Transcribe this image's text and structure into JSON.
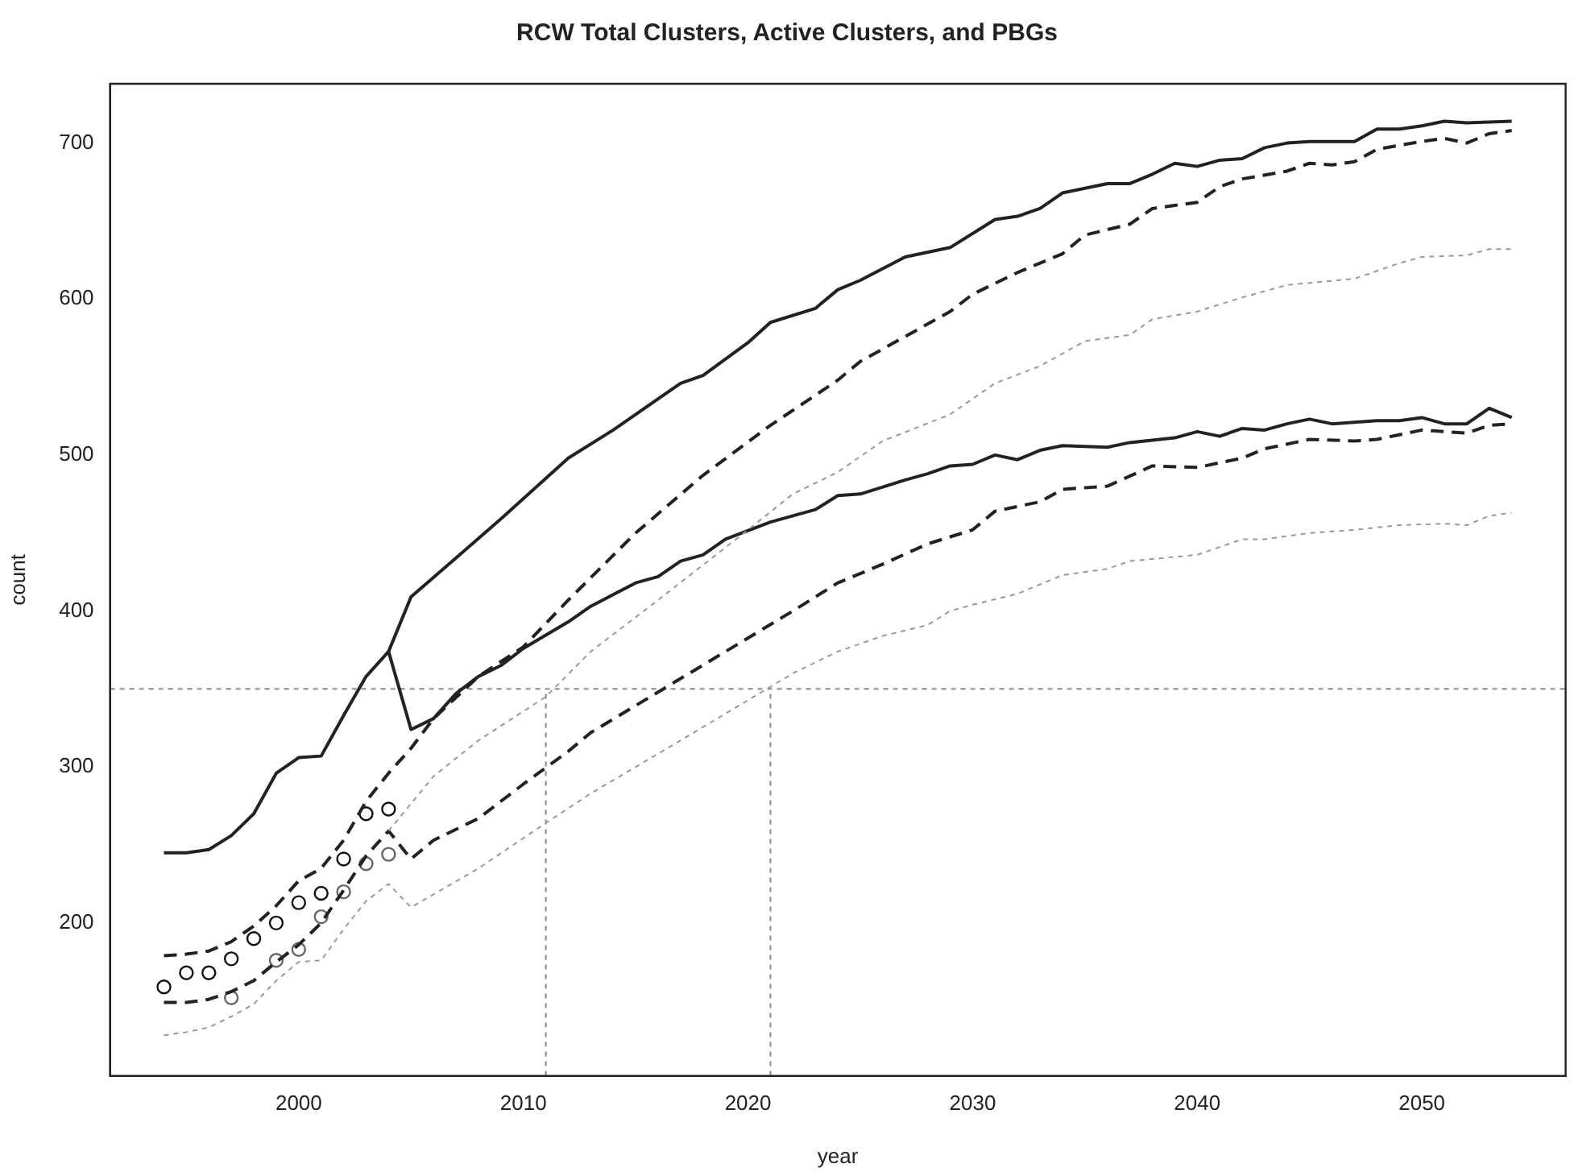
{
  "chart_data": {
    "type": "line",
    "title": "RCW Total Clusters, Active Clusters, and PBGs",
    "xlabel": "year",
    "ylabel": "count",
    "xlim": [
      1991.6,
      2056.4
    ],
    "ylim": [
      102,
      738
    ],
    "xticks": [
      2000,
      2010,
      2020,
      2030,
      2040,
      2050
    ],
    "yticks": [
      200,
      300,
      400,
      500,
      600,
      700
    ],
    "grid": false,
    "legend": false,
    "marker": "none",
    "ref_lines": [
      {
        "axis": "y",
        "value": 350,
        "color": "#888888",
        "line_style": "dotted"
      },
      {
        "axis": "x",
        "value": 2011,
        "color": "#888888",
        "line_style": "dotted"
      },
      {
        "axis": "x",
        "value": 2021,
        "color": "#888888",
        "line_style": "dotted"
      }
    ],
    "series": [
      {
        "type": "line",
        "color": "#222222",
        "line_style": "solid",
        "x": [
          1994,
          1995,
          1996,
          1997,
          1998,
          1999,
          2000,
          2001,
          2002,
          2003,
          2004,
          2005,
          2007,
          2009,
          2012,
          2014,
          2017,
          2018,
          2020,
          2021,
          2023,
          2024,
          2025,
          2027,
          2029,
          2031,
          2032,
          2033,
          2034,
          2036,
          2037,
          2038,
          2039,
          2040,
          2041,
          2042,
          2043,
          2044,
          2045,
          2047,
          2048,
          2049,
          2050,
          2051,
          2052,
          2054
        ],
        "values": [
          245,
          245,
          247,
          256,
          270,
          296,
          306,
          307,
          333,
          358,
          374,
          409,
          434,
          459,
          498,
          516,
          546,
          551,
          572,
          585,
          594,
          606,
          612,
          627,
          633,
          651,
          653,
          658,
          668,
          674,
          674,
          680,
          687,
          685,
          689,
          690,
          697,
          700,
          701,
          701,
          709,
          709,
          711,
          714,
          713,
          714
        ]
      },
      {
        "type": "line",
        "color": "#222222",
        "line_style": "dashed",
        "x": [
          1994,
          1995,
          1996,
          1997,
          1998,
          1999,
          2000,
          2001,
          2002,
          2003,
          2004,
          2005,
          2006,
          2008,
          2010,
          2012,
          2015,
          2018,
          2021,
          2024,
          2025,
          2027,
          2029,
          2030,
          2032,
          2034,
          2035,
          2037,
          2038,
          2040,
          2041,
          2042,
          2044,
          2045,
          2046,
          2047,
          2048,
          2050,
          2051,
          2052,
          2053,
          2054
        ],
        "values": [
          179,
          180,
          182,
          188,
          198,
          211,
          227,
          235,
          253,
          278,
          296,
          312,
          331,
          358,
          377,
          407,
          450,
          487,
          519,
          548,
          560,
          576,
          592,
          603,
          617,
          629,
          641,
          648,
          658,
          662,
          672,
          677,
          682,
          687,
          686,
          688,
          696,
          701,
          703,
          700,
          706,
          708
        ]
      },
      {
        "type": "line",
        "color": "#999999",
        "line_style": "dotted",
        "x": [
          2004,
          2006,
          2008,
          2011,
          2013,
          2016,
          2020,
          2022,
          2024,
          2026,
          2029,
          2031,
          2033,
          2035,
          2037,
          2038,
          2040,
          2042,
          2044,
          2047,
          2049,
          2050,
          2052,
          2053,
          2054
        ],
        "values": [
          259,
          294,
          317,
          345,
          374,
          407,
          452,
          475,
          489,
          509,
          526,
          546,
          557,
          573,
          577,
          587,
          592,
          601,
          609,
          613,
          623,
          627,
          628,
          632,
          632
        ]
      },
      {
        "type": "line",
        "color": "#222222",
        "line_style": "solid",
        "x": [
          2004,
          2005,
          2006,
          2007,
          2008,
          2009,
          2010,
          2012,
          2013,
          2015,
          2016,
          2017,
          2018,
          2019,
          2021,
          2023,
          2024,
          2025,
          2027,
          2028,
          2029,
          2030,
          2031,
          2032,
          2033,
          2034,
          2036,
          2037,
          2039,
          2040,
          2041,
          2042,
          2043,
          2044,
          2045,
          2046,
          2048,
          2049,
          2050,
          2051,
          2052,
          2053,
          2054
        ],
        "values": [
          374,
          324,
          331,
          347,
          358,
          365,
          376,
          393,
          403,
          418,
          422,
          432,
          436,
          446,
          457,
          465,
          474,
          475,
          484,
          488,
          493,
          494,
          500,
          497,
          503,
          506,
          505,
          508,
          511,
          515,
          512,
          517,
          516,
          520,
          523,
          520,
          522,
          522,
          524,
          520,
          520,
          530,
          524
        ]
      },
      {
        "type": "line",
        "color": "#222222",
        "line_style": "dashed",
        "x": [
          1994,
          1995,
          1996,
          1997,
          1998,
          1999,
          2000,
          2001,
          2002,
          2003,
          2004,
          2005,
          2006,
          2008,
          2010,
          2012,
          2013,
          2022,
          2024,
          2026,
          2028,
          2030,
          2031,
          2033,
          2034,
          2036,
          2038,
          2040,
          2042,
          2043,
          2045,
          2047,
          2048,
          2050,
          2052,
          2053,
          2054
        ],
        "values": [
          149,
          149,
          151,
          156,
          163,
          175,
          186,
          200,
          221,
          243,
          259,
          241,
          253,
          267,
          289,
          310,
          322,
          400,
          418,
          430,
          443,
          452,
          464,
          470,
          478,
          480,
          493,
          492,
          498,
          504,
          510,
          509,
          510,
          516,
          514,
          519,
          520
        ]
      },
      {
        "type": "line",
        "color": "#999999",
        "line_style": "dotted",
        "x": [
          1994,
          1995,
          1996,
          1997,
          1998,
          1999,
          2000,
          2001,
          2002,
          2003,
          2004,
          2005,
          2008,
          2011,
          2013,
          2017,
          2022,
          2024,
          2026,
          2028,
          2029,
          2030,
          2032,
          2034,
          2036,
          2037,
          2040,
          2042,
          2043,
          2045,
          2047,
          2049,
          2051,
          2052,
          2053,
          2054
        ],
        "values": [
          128,
          130,
          133,
          140,
          148,
          163,
          175,
          176,
          196,
          214,
          225,
          210,
          235,
          264,
          283,
          317,
          360,
          374,
          384,
          391,
          400,
          404,
          411,
          423,
          427,
          432,
          436,
          446,
          446,
          450,
          452,
          455,
          456,
          455,
          461,
          463
        ]
      },
      {
        "type": "scatter",
        "color": "#111111",
        "marker": "circle",
        "x": [
          1994,
          1995,
          1996,
          1997,
          1998,
          1999,
          2000,
          2001,
          2002,
          2003,
          2004
        ],
        "values": [
          159,
          168,
          168,
          177,
          190,
          200,
          213,
          219,
          241,
          270,
          273
        ]
      },
      {
        "type": "scatter",
        "color": "#666666",
        "marker": "circle",
        "x": [
          1997,
          1999,
          2000,
          2001,
          2002,
          2003,
          2004
        ],
        "values": [
          152,
          176,
          183,
          204,
          220,
          238,
          244
        ]
      }
    ]
  }
}
